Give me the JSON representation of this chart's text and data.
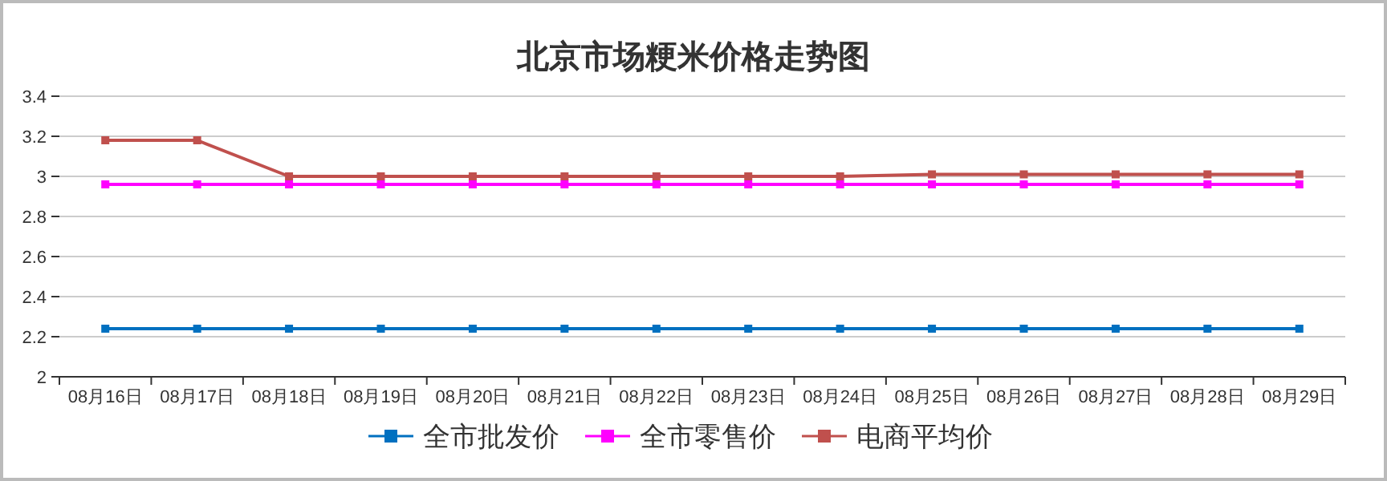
{
  "chart_data": {
    "type": "line",
    "title": "北京市场粳米价格走势图",
    "categories": [
      "08月16日",
      "08月17日",
      "08月18日",
      "08月19日",
      "08月20日",
      "08月21日",
      "08月22日",
      "08月23日",
      "08月24日",
      "08月25日",
      "08月26日",
      "08月27日",
      "08月28日",
      "08月29日"
    ],
    "series": [
      {
        "name": "全市批发价",
        "color": "#0070c0",
        "values": [
          2.24,
          2.24,
          2.24,
          2.24,
          2.24,
          2.24,
          2.24,
          2.24,
          2.24,
          2.24,
          2.24,
          2.24,
          2.24,
          2.24
        ]
      },
      {
        "name": "全市零售价",
        "color": "#ff00ff",
        "values": [
          2.96,
          2.96,
          2.96,
          2.96,
          2.96,
          2.96,
          2.96,
          2.96,
          2.96,
          2.96,
          2.96,
          2.96,
          2.96,
          2.96
        ]
      },
      {
        "name": "电商平均价",
        "color": "#c0504d",
        "values": [
          3.18,
          3.18,
          3.0,
          3.0,
          3.0,
          3.0,
          3.0,
          3.0,
          3.0,
          3.01,
          3.01,
          3.01,
          3.01,
          3.01
        ]
      }
    ],
    "ylim": [
      2,
      3.4
    ],
    "yticks": [
      2,
      2.2,
      2.4,
      2.6,
      2.8,
      3,
      3.2,
      3.4
    ],
    "grid": "y",
    "legend": "bottom",
    "marker": "square",
    "line_style": "solid"
  }
}
